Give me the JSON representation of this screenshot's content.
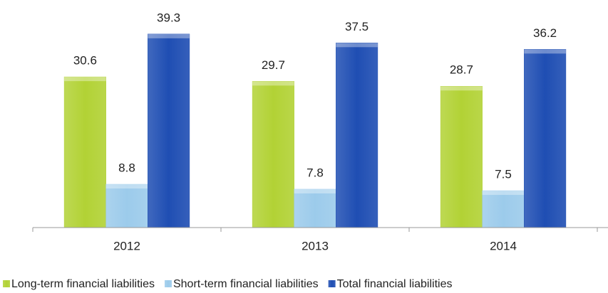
{
  "chart_data": {
    "type": "bar",
    "categories": [
      "2012",
      "2013",
      "2014"
    ],
    "series": [
      {
        "name": "Long-term financial liabilities",
        "color": "#b2d235",
        "values": [
          30.6,
          29.7,
          28.7
        ]
      },
      {
        "name": "Short-term financial liabilities",
        "color": "#9ccbeb",
        "values": [
          8.8,
          7.8,
          7.5
        ]
      },
      {
        "name": "Total financial liabilities",
        "color": "#1f4eb3",
        "values": [
          39.3,
          37.5,
          36.2
        ]
      }
    ],
    "ylim": [
      0,
      40
    ]
  }
}
